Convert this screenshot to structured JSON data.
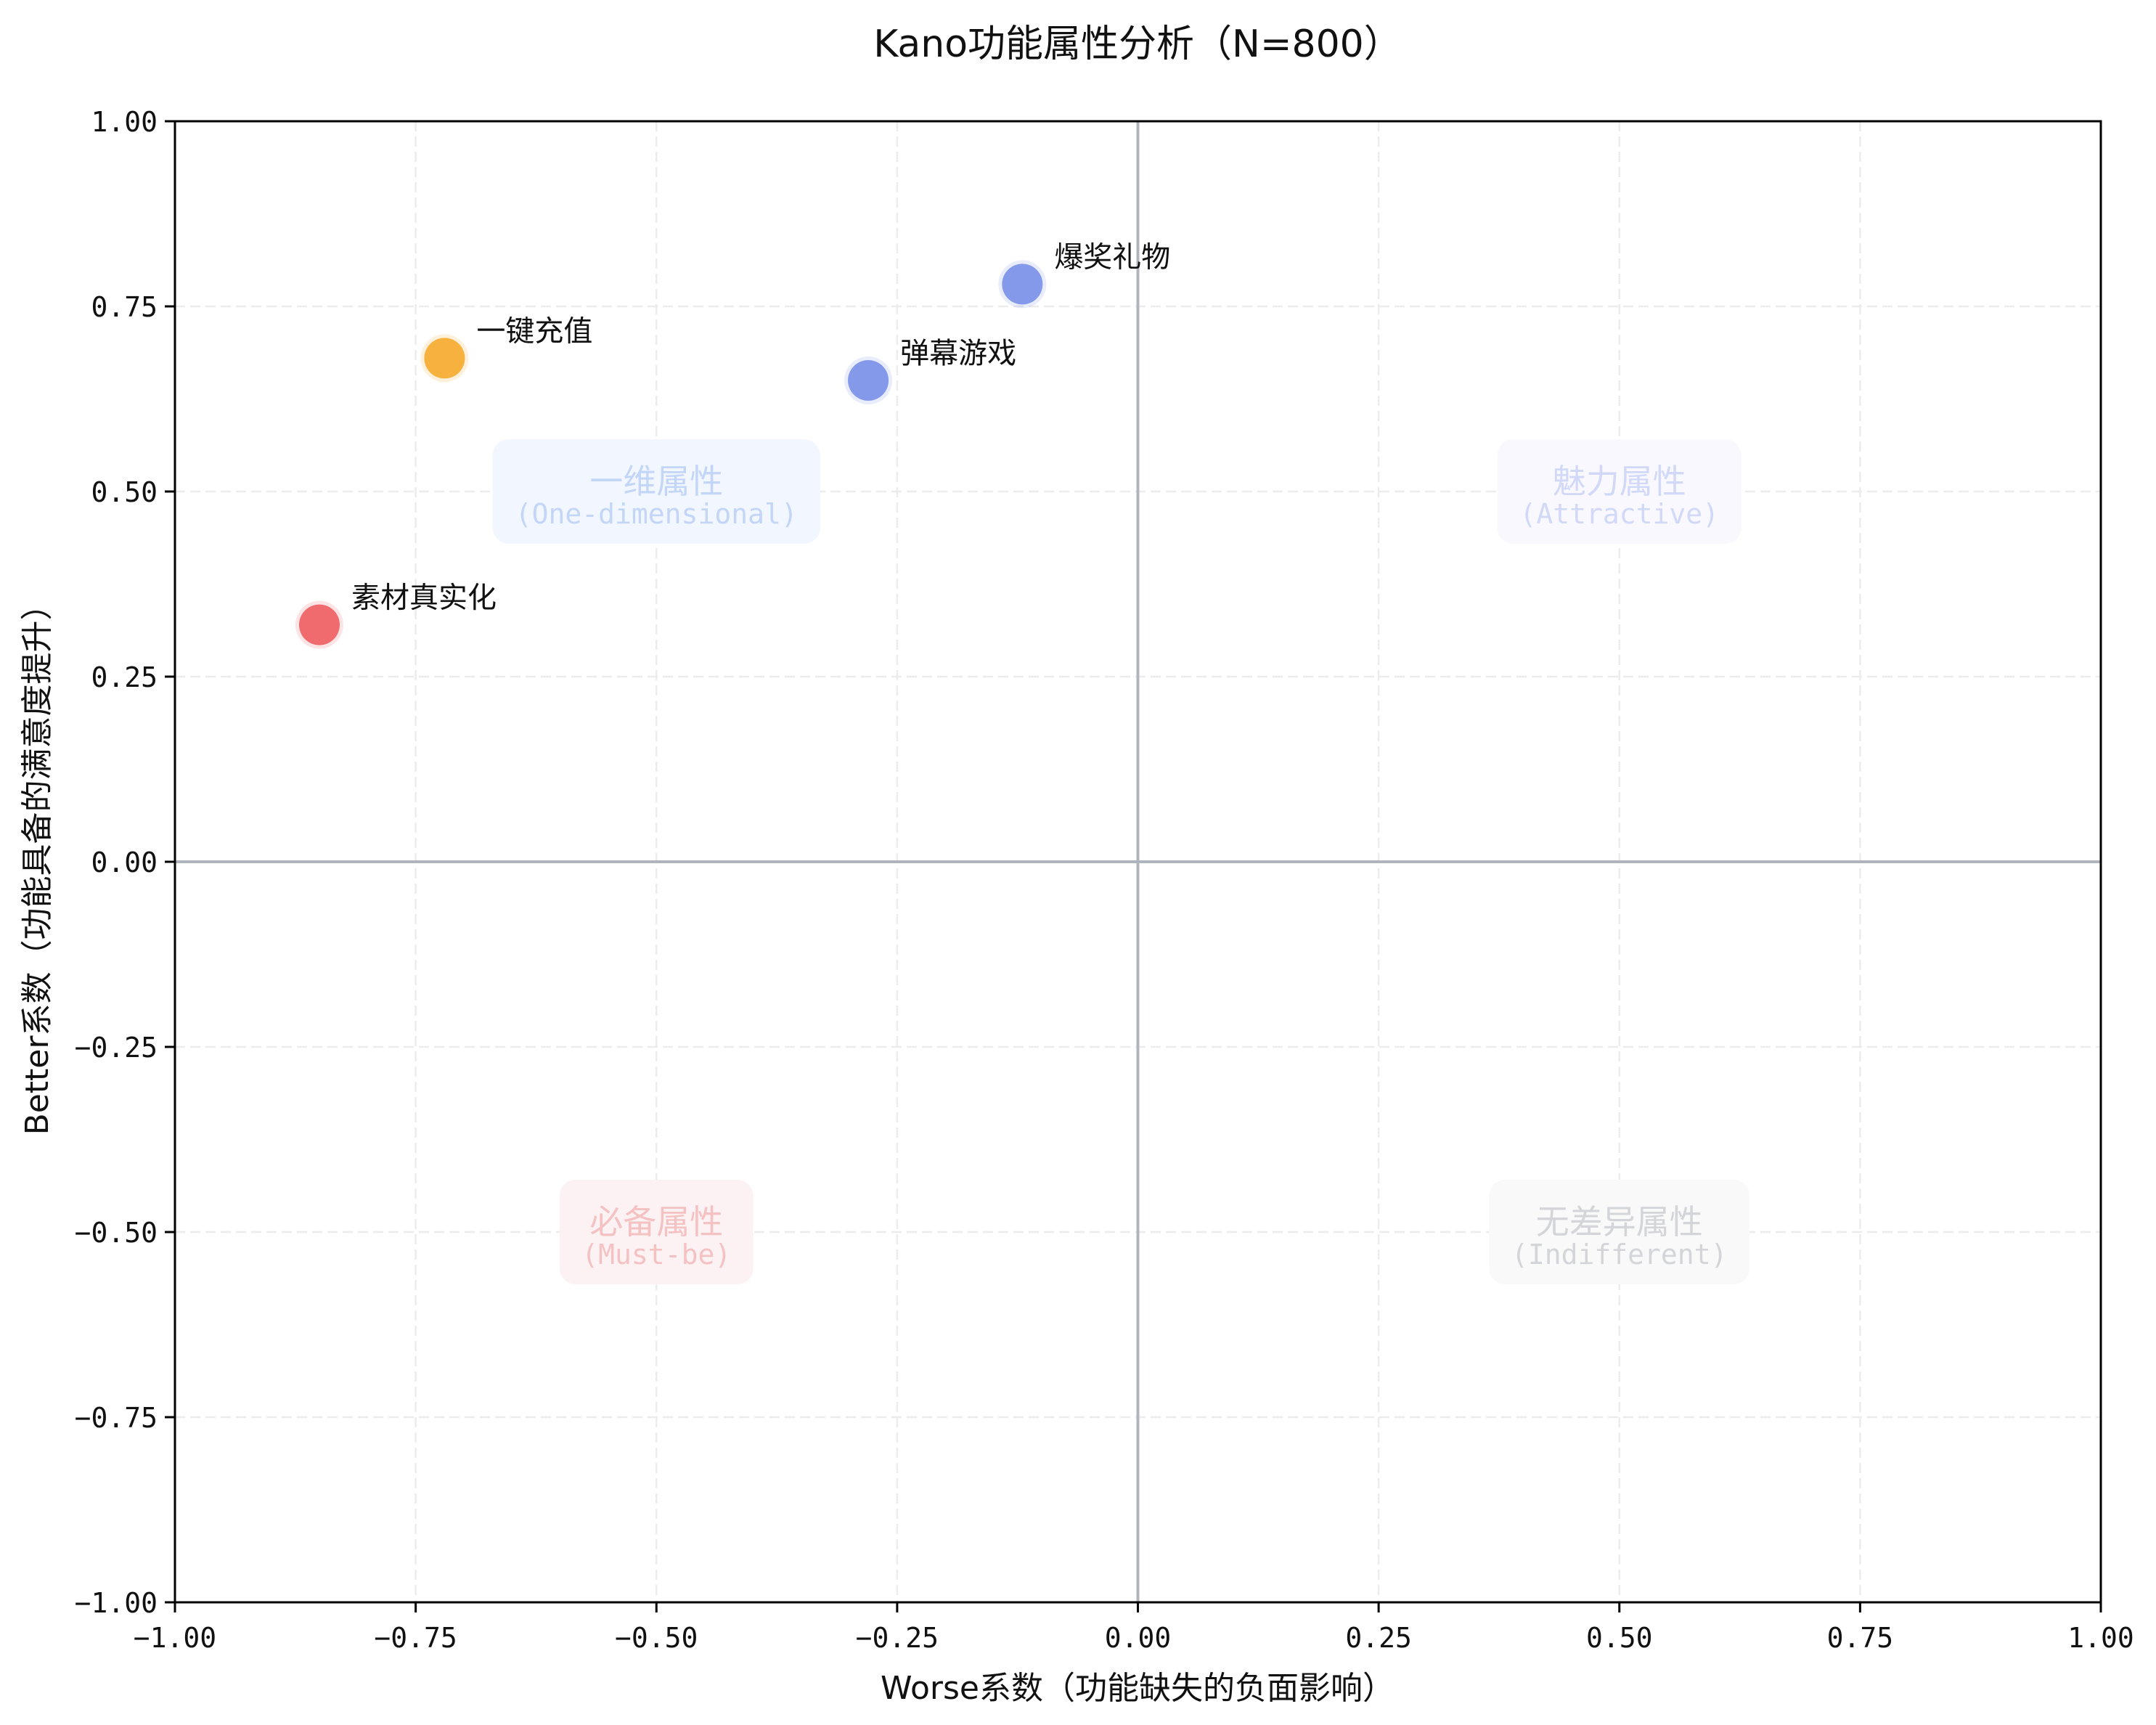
{
  "chart_data": {
    "type": "scatter",
    "title": "Kano功能属性分析（N=800）",
    "xlabel": "Worse系数（功能缺失的负面影响）",
    "ylabel": "Better系数（功能具备的满意度提升）",
    "xlim": [
      -1.0,
      1.0
    ],
    "ylim": [
      -1.0,
      1.0
    ],
    "x_ticks": [
      "−1.00",
      "−0.75",
      "−0.50",
      "−0.25",
      "0.00",
      "0.25",
      "0.50",
      "0.75",
      "1.00"
    ],
    "y_ticks": [
      "1.00",
      "0.75",
      "0.50",
      "0.25",
      "0.00",
      "−0.25",
      "−0.50",
      "−0.75",
      "−1.00"
    ],
    "tick_values": [
      -1.0,
      -0.75,
      -0.5,
      -0.25,
      0.0,
      0.25,
      0.5,
      0.75,
      1.0
    ],
    "grid": true,
    "grid_style": "dashed",
    "reference_lines": {
      "x": 0.0,
      "y": 0.0,
      "color": "#b0b4bc"
    },
    "points": [
      {
        "label": "爆奖礼物",
        "x": -0.12,
        "y": 0.78,
        "color": "#8599ea"
      },
      {
        "label": "一键充值",
        "x": -0.72,
        "y": 0.68,
        "color": "#f7b13f"
      },
      {
        "label": "弹幕游戏",
        "x": -0.28,
        "y": 0.65,
        "color": "#8599ea"
      },
      {
        "label": "素材真实化",
        "x": -0.85,
        "y": 0.32,
        "color": "#ef6b6e"
      }
    ],
    "quadrants": [
      {
        "name": "一维属性",
        "english": "(One-dimensional)",
        "x": -0.5,
        "y": 0.5,
        "text_color": "#c3d6f7",
        "bg_color": "#f2f6fe"
      },
      {
        "name": "魅力属性",
        "english": "(Attractive)",
        "x": 0.5,
        "y": 0.5,
        "text_color": "#d2d9f8",
        "bg_color": "#f8f8fe"
      },
      {
        "name": "必备属性",
        "english": "(Must-be)",
        "x": -0.5,
        "y": -0.5,
        "text_color": "#f5c2c3",
        "bg_color": "#fdf2f3"
      },
      {
        "name": "无差异属性",
        "english": "(Indifferent)",
        "x": 0.5,
        "y": -0.5,
        "text_color": "#d4d5d8",
        "bg_color": "#f9f9fa"
      }
    ]
  }
}
